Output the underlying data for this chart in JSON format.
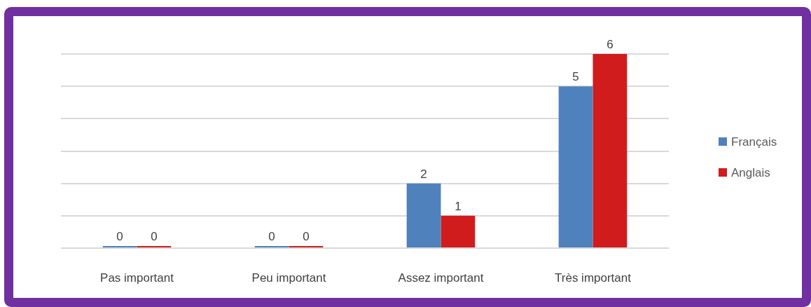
{
  "chart_data": {
    "type": "bar",
    "categories": [
      "Pas important",
      "Peu important",
      "Assez important",
      "Très important"
    ],
    "series": [
      {
        "name": "Français",
        "color": "#4f81bd",
        "values": [
          0,
          0,
          2,
          5
        ]
      },
      {
        "name": "Anglais",
        "color": "#d01c1c",
        "values": [
          0,
          0,
          1,
          6
        ]
      }
    ],
    "ylim": [
      0,
      6
    ],
    "yticks": [
      {
        "value": 0,
        "label": null
      },
      {
        "value": 1,
        "label": null
      },
      {
        "value": 2,
        "label": null
      },
      {
        "value": 3,
        "label": null
      },
      {
        "value": 4,
        "label": null
      },
      {
        "value": 5,
        "label": null
      },
      {
        "value": 6,
        "label": null
      }
    ],
    "tick_labels": "x",
    "grid": "y",
    "legend": "right",
    "data_labels": true
  }
}
